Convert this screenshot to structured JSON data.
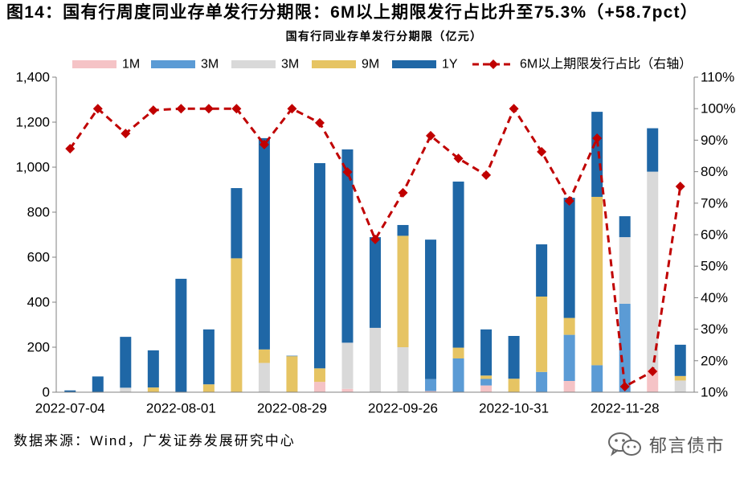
{
  "figure_title": "图14：国有行周度同业存单发行分期限：6M以上期限发行占比升至75.3%（+58.7pct）",
  "source": "数据来源：Wind，广发证券发展研究中心",
  "watermark": {
    "text": "郁言债市",
    "icon": "wechat-icon"
  },
  "chart_data": {
    "type": "bar",
    "stacked": true,
    "title": "国有行同业存单发行分期限（亿元）",
    "categories": [
      "2022-07-04",
      "",
      "",
      "",
      "2022-08-01",
      "",
      "",
      "",
      "2022-08-29",
      "",
      "",
      "",
      "2022-09-26",
      "",
      "",
      "",
      "2022-10-31",
      "",
      "",
      "",
      "2022-11-28",
      "",
      ""
    ],
    "series": [
      {
        "name": "1M",
        "type": "bar",
        "axis": "left",
        "color": "#f5c3c6",
        "values": [
          0,
          0,
          0,
          0,
          0,
          0,
          0,
          0,
          0,
          46,
          15,
          0,
          0,
          5,
          0,
          30,
          0,
          0,
          50,
          0,
          0,
          100,
          0
        ]
      },
      {
        "name": "3M",
        "type": "bar",
        "axis": "left",
        "color": "#5b9bd5",
        "values": [
          0,
          0,
          0,
          0,
          0,
          0,
          0,
          0,
          0,
          0,
          0,
          0,
          0,
          53,
          150,
          29,
          0,
          90,
          205,
          120,
          393,
          0,
          0
        ]
      },
      {
        "name": "3M",
        "type": "bar",
        "axis": "left",
        "color": "#d9d9d9",
        "values": [
          1,
          0,
          20,
          1,
          0,
          0,
          0,
          130,
          0,
          0,
          205,
          286,
          200,
          0,
          0,
          0,
          0,
          0,
          0,
          0,
          296,
          880,
          52
        ]
      },
      {
        "name": "9M",
        "type": "bar",
        "axis": "left",
        "color": "#e6c463",
        "values": [
          0,
          0,
          0,
          20,
          0,
          35,
          595,
          60,
          160,
          60,
          0,
          0,
          495,
          0,
          48,
          15,
          60,
          335,
          75,
          748,
          0,
          0,
          20
        ]
      },
      {
        "name": "1Y",
        "type": "bar",
        "axis": "left",
        "color": "#1f67a6",
        "values": [
          7,
          70,
          226,
          165,
          504,
          244,
          312,
          939,
          2,
          912,
          859,
          403,
          48,
          620,
          738,
          205,
          190,
          232,
          534,
          378,
          93,
          193,
          139
        ]
      },
      {
        "name": "6M以上期限发行占比（右轴）",
        "type": "line",
        "axis": "right",
        "unit": "%",
        "color": "#c00000",
        "marker": "diamond",
        "line_style": "dashed",
        "values": [
          87.3,
          100,
          92.1,
          99.5,
          100,
          100,
          100,
          88.6,
          100,
          95.5,
          79.9,
          58.5,
          73.3,
          91.4,
          84.2,
          78.9,
          100,
          86.3,
          70.7,
          90.6,
          11.8,
          16.6,
          75.3
        ]
      }
    ],
    "ylim": [
      0,
      1400
    ],
    "ytick_labels": [
      "0",
      "200",
      "400",
      "600",
      "800",
      "1,000",
      "1,200",
      "1,400"
    ],
    "y2lim": [
      10,
      110
    ],
    "y2tick_labels": [
      "10%",
      "20%",
      "30%",
      "40%",
      "50%",
      "60%",
      "70%",
      "80%",
      "90%",
      "100%",
      "110%"
    ],
    "legend": "top",
    "grid": false
  }
}
